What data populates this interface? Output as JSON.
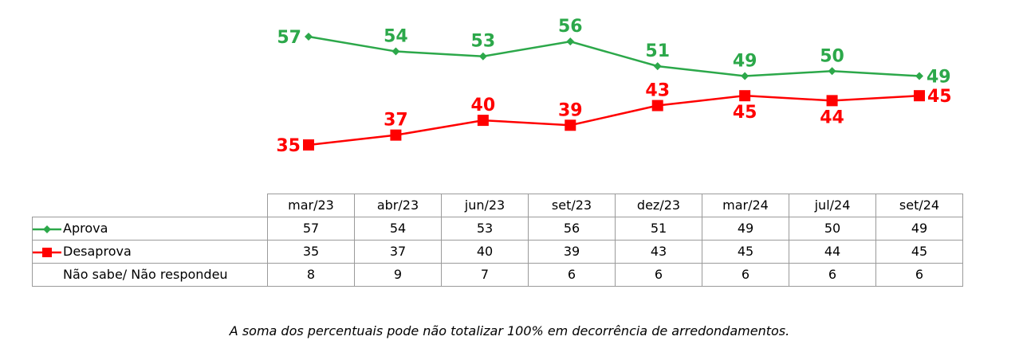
{
  "chart_data": {
    "type": "line",
    "categories": [
      "mar/23",
      "abr/23",
      "jun/23",
      "set/23",
      "dez/23",
      "mar/24",
      "jul/24",
      "set/24"
    ],
    "series": [
      {
        "name": "Aprova",
        "color": "#2ca84a",
        "marker": "diamond",
        "values": [
          57,
          54,
          53,
          56,
          51,
          49,
          50,
          49
        ]
      },
      {
        "name": "Desaprova",
        "color": "#ff0000",
        "marker": "square",
        "values": [
          35,
          37,
          40,
          39,
          43,
          45,
          44,
          45
        ]
      }
    ],
    "table": {
      "rows": [
        {
          "label": "Aprova",
          "values": [
            "57",
            "54",
            "53",
            "56",
            "51",
            "49",
            "50",
            "49"
          ]
        },
        {
          "label": "Desaprova",
          "values": [
            "35",
            "37",
            "40",
            "39",
            "43",
            "45",
            "44",
            "45"
          ]
        },
        {
          "label": "Não sabe/ Não respondeu",
          "values": [
            "8",
            "9",
            "7",
            "6",
            "6",
            "6",
            "6",
            "6"
          ]
        }
      ]
    },
    "note": "A soma dos percentuais pode não totalizar 100% em decorrência de arredondamentos."
  }
}
